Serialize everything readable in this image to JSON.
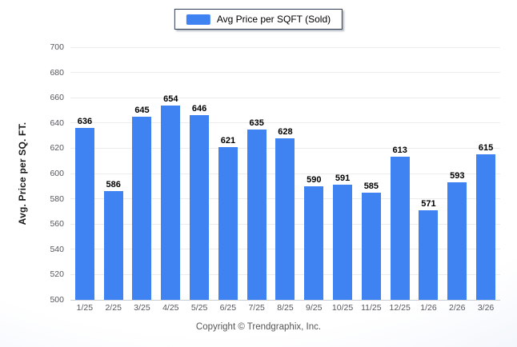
{
  "chart_data": {
    "type": "bar",
    "title": "",
    "legend_label": "Avg Price per SQFT (Sold)",
    "legend_position": "top-center",
    "categories": [
      "1/25",
      "2/25",
      "3/25",
      "4/25",
      "5/25",
      "6/25",
      "7/25",
      "8/25",
      "9/25",
      "10/25",
      "11/25",
      "12/25",
      "1/26",
      "2/26",
      "3/26"
    ],
    "values": [
      636,
      586,
      645,
      654,
      646,
      621,
      635,
      628,
      590,
      591,
      585,
      613,
      571,
      593,
      615
    ],
    "xlabel": "",
    "ylabel": "Avg. Price per SQ. FT.",
    "ylim": [
      500,
      700
    ],
    "ytick_step": 20,
    "grid": "horizontal",
    "bar_color": "#3f82f2"
  },
  "footer": {
    "copyright": "Copyright © Trendgraphix, Inc."
  },
  "colors": {
    "bar": "#3f82f2",
    "gridline": "#ececec",
    "axis_line": "#c9cdd4",
    "tick_text": "#55555e",
    "value_label": "#000000",
    "legend_border": "#2e3a52",
    "background_edge": "#e3ebf7"
  }
}
